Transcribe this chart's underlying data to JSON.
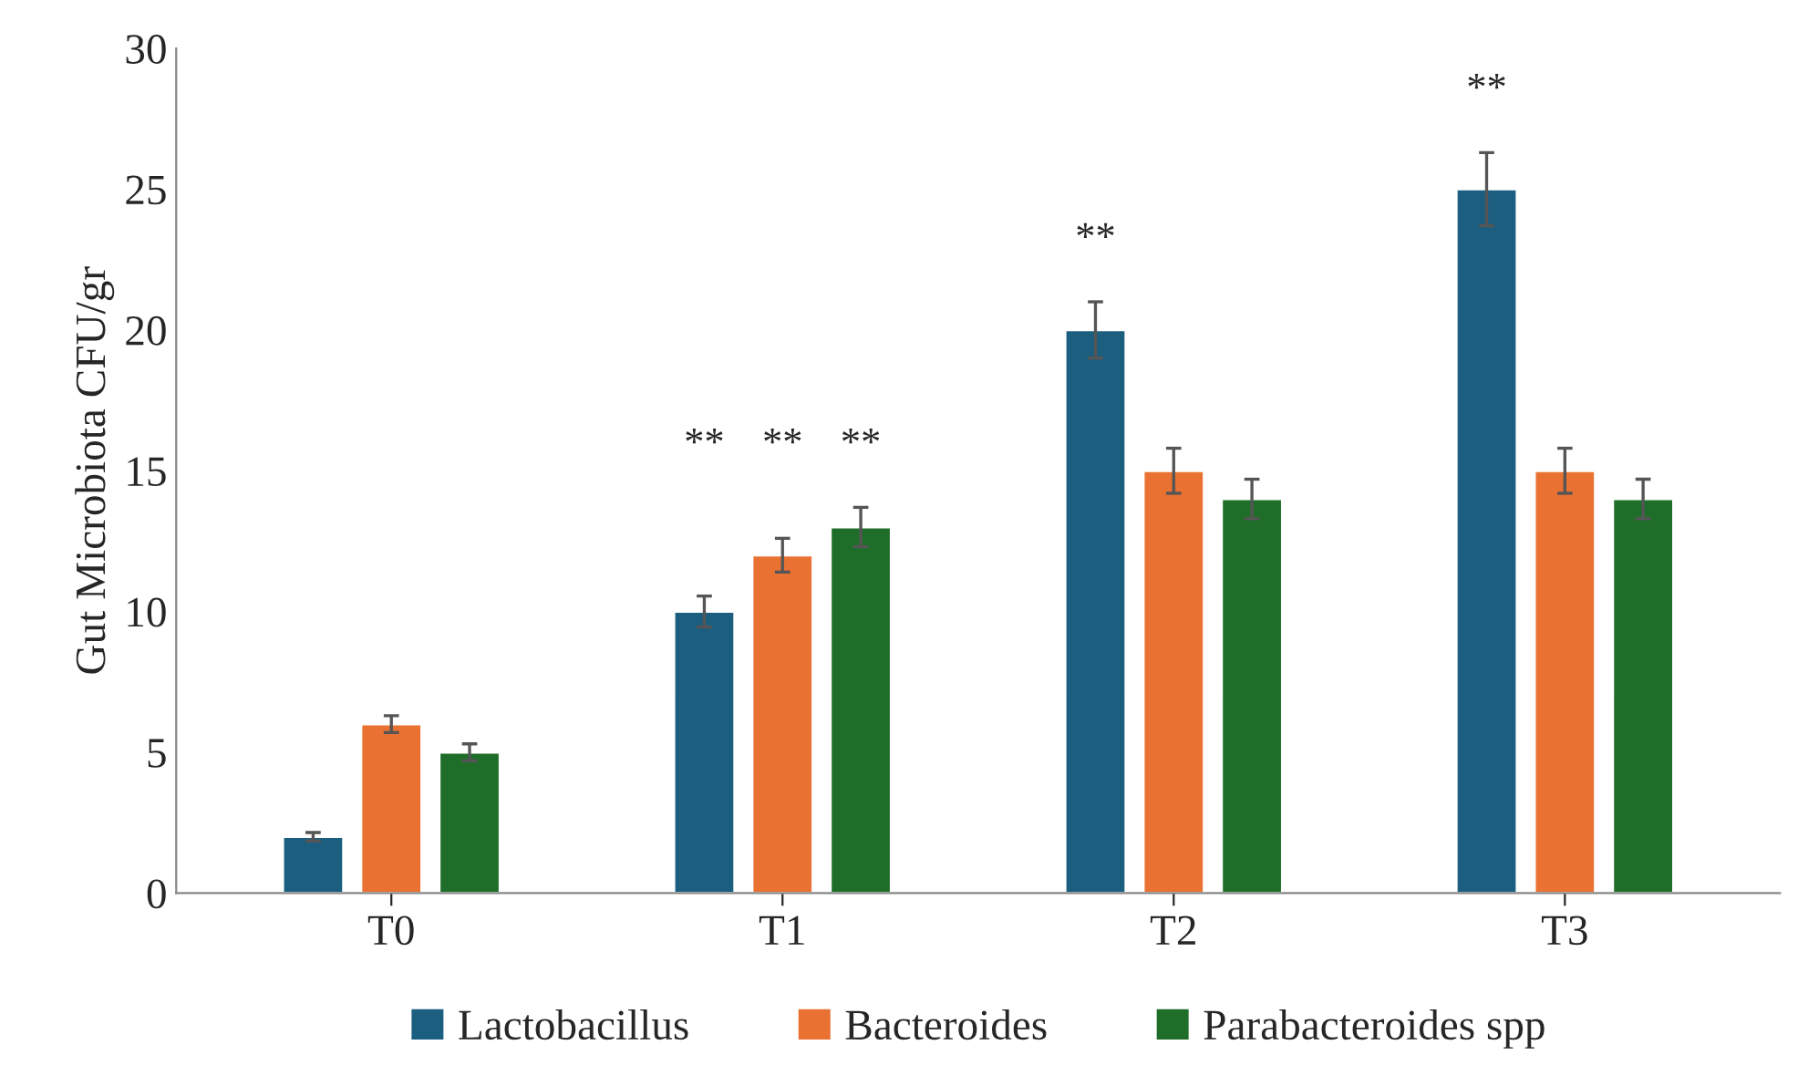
{
  "chart_data": {
    "type": "bar",
    "ylabel": "Gut Microbiota CFU/gr",
    "categories": [
      "T0",
      "T1",
      "T2",
      "T3"
    ],
    "series": [
      {
        "name": "Lactobacillus",
        "color": "#1b5e80",
        "values": [
          2,
          10,
          20,
          25
        ],
        "errors": [
          0.15,
          0.55,
          1.0,
          1.3
        ]
      },
      {
        "name": "Bacteroides",
        "color": "#e97132",
        "values": [
          6,
          12,
          15,
          15
        ],
        "errors": [
          0.3,
          0.6,
          0.8,
          0.8
        ]
      },
      {
        "name": "Parabacteroides spp",
        "color": "#1e6e2a",
        "values": [
          5,
          13,
          14,
          14
        ],
        "errors": [
          0.3,
          0.7,
          0.7,
          0.7
        ]
      }
    ],
    "ylim": [
      0,
      30
    ],
    "yticks": [
      0,
      5,
      10,
      15,
      20,
      25,
      30
    ],
    "grid": false,
    "legend": "bottom",
    "annotations": [
      "**",
      "**",
      "**",
      "**",
      "**"
    ]
  }
}
